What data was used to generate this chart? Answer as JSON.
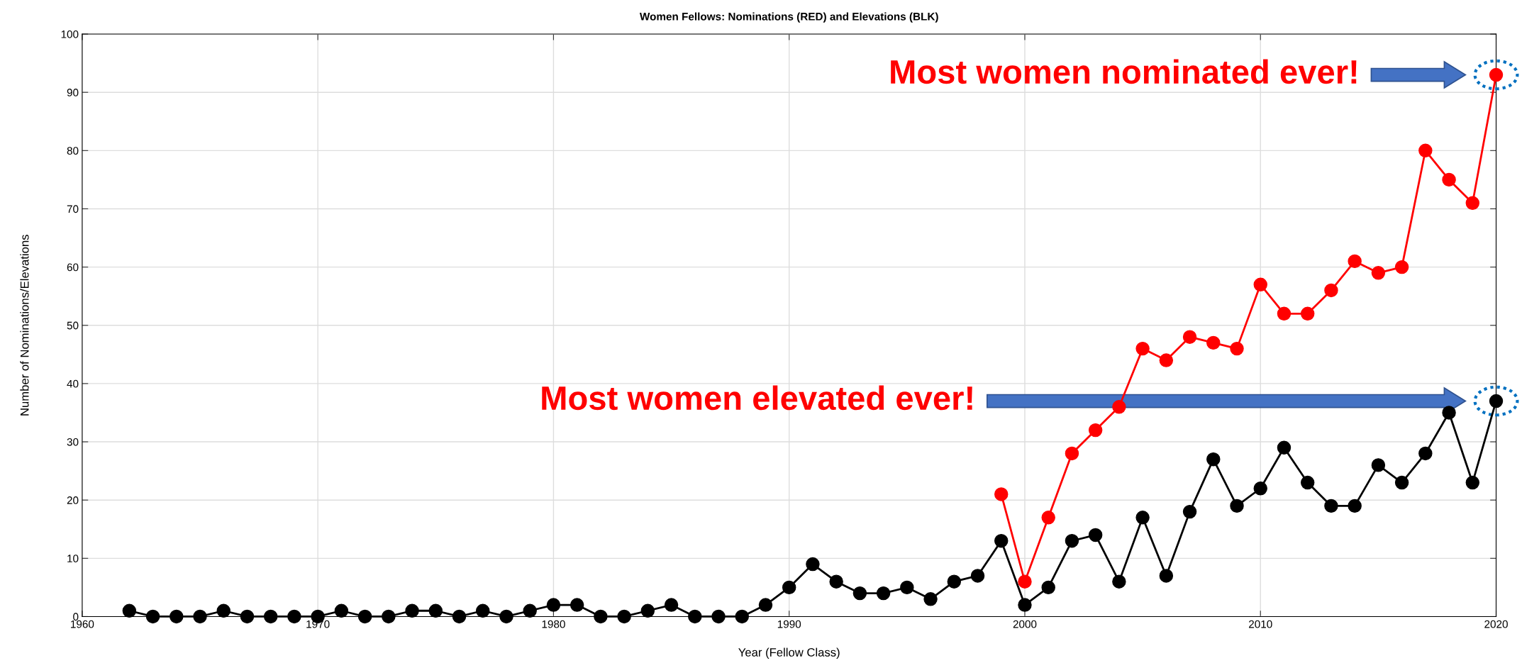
{
  "chart_data": {
    "type": "line",
    "title": "Women Fellows: Nominations (RED) and Elevations (BLK)",
    "xlabel": "Year (Fellow Class)",
    "ylabel": "Number of Nominations/Elevations",
    "xlim": [
      1960,
      2020
    ],
    "ylim": [
      0,
      100
    ],
    "xticks": [
      1960,
      1970,
      1980,
      1990,
      2000,
      2010,
      2020
    ],
    "yticks": [
      0,
      10,
      20,
      30,
      40,
      50,
      60,
      70,
      80,
      90,
      100
    ],
    "grid": true,
    "marker": "circle",
    "line_style": "solid",
    "series": [
      {
        "color": "#000000",
        "x": [
          1962,
          1963,
          1964,
          1965,
          1966,
          1967,
          1968,
          1969,
          1970,
          1971,
          1972,
          1973,
          1974,
          1975,
          1976,
          1977,
          1978,
          1979,
          1980,
          1981,
          1982,
          1983,
          1984,
          1985,
          1986,
          1987,
          1988,
          1989,
          1990,
          1991,
          1992,
          1993,
          1994,
          1995,
          1996,
          1997,
          1998,
          1999,
          2000,
          2001,
          2002,
          2003,
          2004,
          2005,
          2006,
          2007,
          2008,
          2009,
          2010,
          2011,
          2012,
          2013,
          2014,
          2015,
          2016,
          2017,
          2018,
          2019,
          2020
        ],
        "values": [
          1,
          0,
          0,
          0,
          1,
          0,
          0,
          0,
          0,
          1,
          0,
          0,
          1,
          1,
          0,
          1,
          0,
          1,
          2,
          2,
          0,
          0,
          1,
          2,
          0,
          0,
          0,
          2,
          5,
          9,
          6,
          4,
          4,
          5,
          3,
          6,
          7,
          13,
          2,
          5,
          13,
          14,
          6,
          17,
          7,
          18,
          27,
          19,
          22,
          29,
          23,
          19,
          19,
          26,
          23,
          28,
          35,
          23,
          37
        ]
      },
      {
        "color": "#ff0000",
        "x": [
          1999,
          2000,
          2001,
          2002,
          2003,
          2004,
          2005,
          2006,
          2007,
          2008,
          2009,
          2010,
          2011,
          2012,
          2013,
          2014,
          2015,
          2016,
          2017,
          2018,
          2019,
          2020
        ],
        "values": [
          21,
          6,
          17,
          28,
          32,
          36,
          46,
          44,
          48,
          47,
          46,
          57,
          52,
          52,
          56,
          61,
          59,
          60,
          80,
          75,
          71,
          93
        ]
      }
    ],
    "annotations": [
      "Most women nominated ever!",
      "Most women elevated ever!"
    ]
  }
}
